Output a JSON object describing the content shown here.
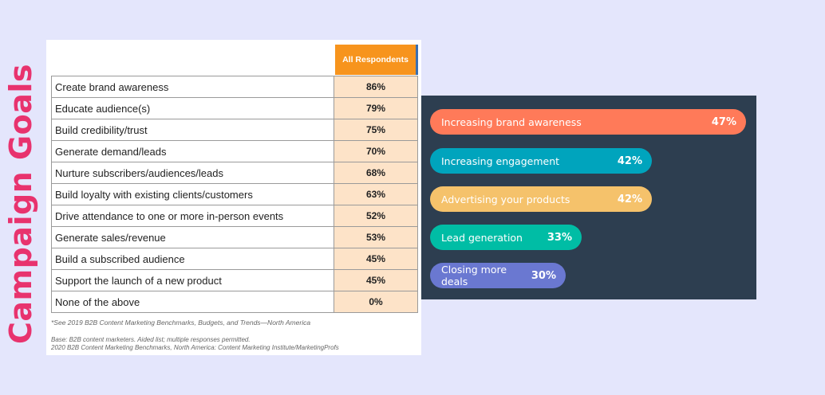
{
  "title": "Campaign Goals",
  "table": {
    "header": "All Respondents",
    "rows": [
      {
        "label": "Create brand awareness",
        "value": "86%"
      },
      {
        "label": "Educate audience(s)",
        "value": "79%"
      },
      {
        "label": "Build credibility/trust",
        "value": "75%"
      },
      {
        "label": "Generate demand/leads",
        "value": "70%"
      },
      {
        "label": "Nurture subscribers/audiences/leads",
        "value": "68%"
      },
      {
        "label": "Build loyalty with existing clients/customers",
        "value": "63%"
      },
      {
        "label": "Drive attendance to one or more in-person events",
        "value": "52%"
      },
      {
        "label": "Generate sales/revenue",
        "value": "53%"
      },
      {
        "label": "Build a subscribed audience",
        "value": "45%"
      },
      {
        "label": "Support the launch of a new product",
        "value": "45%"
      },
      {
        "label": "None of the above",
        "value": "0%"
      }
    ],
    "footnote": "*See 2019 B2B Content Marketing Benchmarks, Budgets, and Trends—North America",
    "base": "Base: B2B content marketers. Aided list; multiple responses permitted.",
    "source": "2020 B2B Content Marketing Benchmarks, North America: Content Marketing Institute/MarketingProfs"
  },
  "chart_data": {
    "type": "bar",
    "orientation": "horizontal",
    "categories": [
      "Increasing brand awareness",
      "Increasing engagement",
      "Advertising your products",
      "Lead generation",
      "Closing more deals"
    ],
    "values": [
      47,
      42,
      42,
      33,
      30
    ],
    "labels": [
      "47%",
      "42%",
      "42%",
      "33%",
      "30%"
    ],
    "colors": [
      "#ff7a59",
      "#00a4bd",
      "#f5c26b",
      "#00bda5",
      "#6a78d1"
    ],
    "background": "#2d3e50"
  }
}
